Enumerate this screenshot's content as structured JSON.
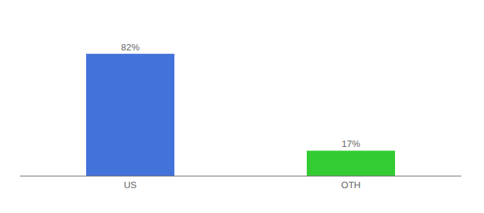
{
  "chart_data": {
    "type": "bar",
    "categories": [
      "US",
      "OTH"
    ],
    "values": [
      82,
      17
    ],
    "value_labels": [
      "82%",
      "17%"
    ],
    "data_labels": true,
    "colors": [
      "#4472db",
      "#33cc33"
    ],
    "ylim": [
      0,
      100
    ],
    "tick_labels": "x",
    "grid": false
  }
}
